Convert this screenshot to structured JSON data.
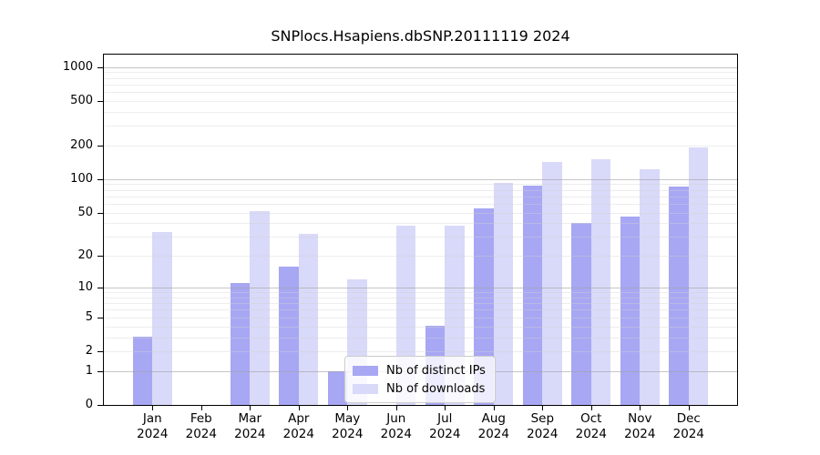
{
  "chart_data": {
    "type": "bar",
    "title": "SNPlocs.Hsapiens.dbSNP.20111119 2024",
    "months": [
      "Jan",
      "Feb",
      "Mar",
      "Apr",
      "May",
      "Jun",
      "Jul",
      "Aug",
      "Sep",
      "Oct",
      "Nov",
      "Dec"
    ],
    "year": "2024",
    "categories": [
      "Jan 2024",
      "Feb 2024",
      "Mar 2024",
      "Apr 2024",
      "May 2024",
      "Jun 2024",
      "Jul 2024",
      "Aug 2024",
      "Sep 2024",
      "Oct 2024",
      "Nov 2024",
      "Dec 2024"
    ],
    "series": [
      {
        "name": "Nb of distinct IPs",
        "color": "#a7a7f4",
        "values": [
          3,
          0,
          11,
          16,
          1,
          0,
          4,
          55,
          88,
          40,
          46,
          85
        ]
      },
      {
        "name": "Nb of downloads",
        "color": "#d9d9f9",
        "values": [
          33,
          0,
          52,
          32,
          12,
          38,
          38,
          93,
          143,
          152,
          122,
          191
        ]
      }
    ],
    "yscale": "log1p",
    "yticks": [
      0,
      1,
      2,
      5,
      10,
      20,
      50,
      100,
      200,
      500,
      1000
    ],
    "ylim": [
      0,
      1000
    ],
    "grid_major_at": [
      1,
      10,
      100,
      1000
    ],
    "grid": true,
    "legend_position": "inside-bottom-center"
  },
  "colors": {
    "axis": "#000000",
    "grid_major": "#c6c6c6",
    "grid_minor": "#ededed",
    "legend_border": "#cccccc",
    "background": "#ffffff"
  }
}
